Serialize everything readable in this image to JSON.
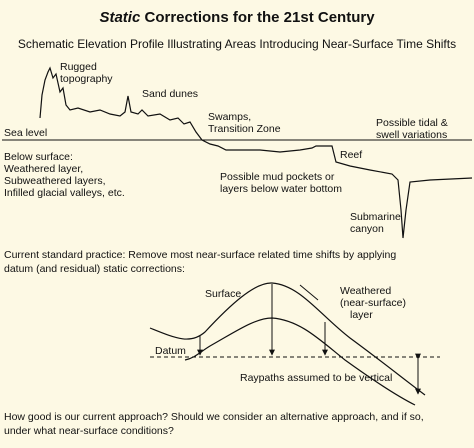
{
  "title": {
    "emphasis": "Static",
    "rest": "Corrections for the 21st Century"
  },
  "subtitle": "Schematic Elevation Profile Illustrating Areas Introducing Near-Surface Time Shifts",
  "profile": {
    "rugged": [
      "Rugged",
      "topography"
    ],
    "sand_dunes": "Sand dunes",
    "swamps": [
      "Swamps,",
      "Transition Zone"
    ],
    "tidal": [
      "Possible tidal &",
      "swell variations"
    ],
    "sea_level": "Sea level",
    "below_surface": [
      "Below surface:",
      "Weathered layer,",
      "Subweathered layers,",
      "Infilled glacial valleys, etc."
    ],
    "mud": [
      "Possible mud pockets or",
      "layers below water bottom"
    ],
    "reef": "Reef",
    "canyon": [
      "Submarine",
      "canyon"
    ]
  },
  "practice": [
    "Current standard practice: Remove most near-surface related time shifts by applying",
    "datum (and residual) static corrections:"
  ],
  "schematic": {
    "surface": "Surface",
    "weathered": [
      "Weathered",
      "(near-surface)",
      "layer"
    ],
    "datum": "Datum",
    "raypaths": "Raypaths assumed to be vertical"
  },
  "question": [
    "How good is our current approach?  Should we consider an alternative approach, and if so,",
    "under what near-surface conditions?"
  ]
}
